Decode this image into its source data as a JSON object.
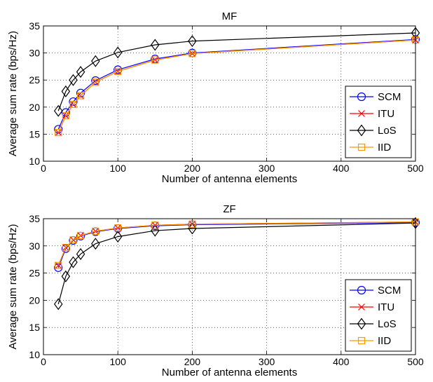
{
  "chart_data": [
    {
      "type": "line",
      "title": "MF",
      "xlabel": "Number of antenna elements",
      "ylabel": "Average sum rate (bps/Hz)",
      "xlim": [
        0,
        500
      ],
      "ylim": [
        10,
        35
      ],
      "xticks": [
        0,
        100,
        200,
        300,
        400,
        500
      ],
      "yticks": [
        10,
        15,
        20,
        25,
        30,
        35
      ],
      "grid": true,
      "legend_position": "bottom-right",
      "x": [
        20,
        30,
        40,
        50,
        70,
        100,
        150,
        200,
        500
      ],
      "series": [
        {
          "name": "SCM",
          "color": "#0000ff",
          "marker": "circle",
          "values": [
            15.9,
            19.0,
            21.0,
            22.6,
            24.9,
            26.9,
            28.9,
            30.0,
            32.5
          ]
        },
        {
          "name": "ITU",
          "color": "#ff0000",
          "marker": "x",
          "values": [
            15.3,
            18.4,
            20.5,
            22.1,
            24.6,
            26.6,
            28.7,
            29.9,
            32.4
          ]
        },
        {
          "name": "LoS",
          "color": "#000000",
          "marker": "diamond",
          "values": [
            19.3,
            22.9,
            25.0,
            26.5,
            28.5,
            30.1,
            31.5,
            32.2,
            33.7
          ]
        },
        {
          "name": "IID",
          "color": "#ff9900",
          "marker": "square",
          "values": [
            15.3,
            18.4,
            20.5,
            22.1,
            24.6,
            26.6,
            28.7,
            29.9,
            32.4
          ]
        }
      ]
    },
    {
      "type": "line",
      "title": "ZF",
      "xlabel": "Number of antenna elements",
      "ylabel": "Average sum rate (bps/Hz)",
      "xlim": [
        0,
        500
      ],
      "ylim": [
        10,
        35
      ],
      "xticks": [
        0,
        100,
        200,
        300,
        400,
        500
      ],
      "yticks": [
        10,
        15,
        20,
        25,
        30,
        35
      ],
      "grid": true,
      "legend_position": "bottom-right",
      "x": [
        20,
        30,
        40,
        50,
        70,
        100,
        150,
        200,
        500
      ],
      "series": [
        {
          "name": "SCM",
          "color": "#0000ff",
          "marker": "circle",
          "values": [
            26.0,
            29.5,
            31.0,
            31.8,
            32.6,
            33.2,
            33.7,
            33.9,
            34.3
          ]
        },
        {
          "name": "ITU",
          "color": "#ff0000",
          "marker": "x",
          "values": [
            26.4,
            29.7,
            31.1,
            31.9,
            32.7,
            33.3,
            33.8,
            34.0,
            34.4
          ]
        },
        {
          "name": "LoS",
          "color": "#000000",
          "marker": "diamond",
          "values": [
            19.3,
            24.4,
            27.0,
            28.5,
            30.4,
            31.7,
            32.8,
            33.2,
            34.2
          ]
        },
        {
          "name": "IID",
          "color": "#ff9900",
          "marker": "square",
          "values": [
            26.4,
            29.7,
            31.1,
            31.9,
            32.7,
            33.3,
            33.8,
            34.0,
            34.4
          ]
        }
      ]
    }
  ]
}
